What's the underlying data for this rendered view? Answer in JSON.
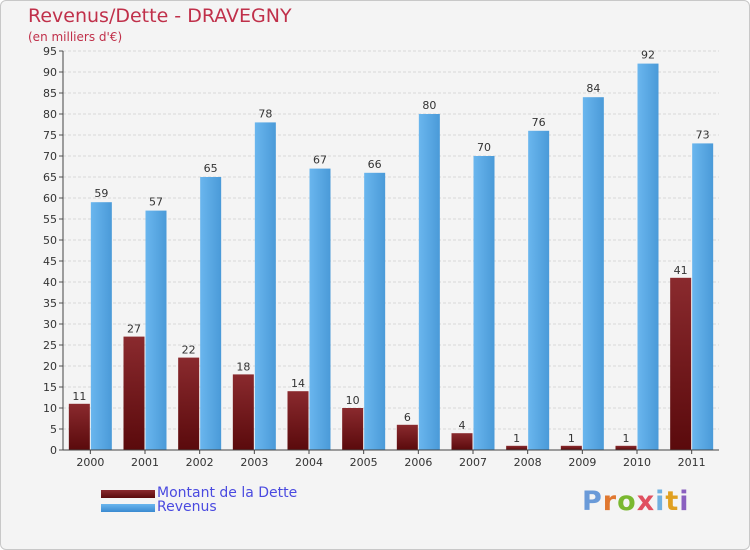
{
  "header": {
    "title": "Revenus/Dette - DRAVEGNY",
    "subtitle": "(en milliers d'€)"
  },
  "legend": {
    "debt_label": "Montant de la Dette",
    "revenue_label": "Revenus"
  },
  "logo": {
    "text": "Proxiti"
  },
  "colors": {
    "debt": "#7a1a1e",
    "revenue": "#5aaae6",
    "title": "#c0304a",
    "legend_text": "#4a4ae0"
  },
  "chart_data": {
    "type": "bar",
    "title": "Revenus/Dette - DRAVEGNY",
    "subtitle": "(en milliers d'€)",
    "categories": [
      "2000",
      "2001",
      "2002",
      "2003",
      "2004",
      "2005",
      "2006",
      "2007",
      "2008",
      "2009",
      "2010",
      "2011"
    ],
    "series": [
      {
        "name": "Montant de la Dette",
        "values": [
          11,
          27,
          22,
          18,
          14,
          10,
          6,
          4,
          1,
          1,
          1,
          41
        ]
      },
      {
        "name": "Revenus",
        "values": [
          59,
          57,
          65,
          78,
          67,
          66,
          80,
          70,
          76,
          84,
          92,
          73
        ]
      }
    ],
    "ylim": [
      0,
      95
    ],
    "yticks": [
      0,
      5,
      10,
      15,
      20,
      25,
      30,
      35,
      40,
      45,
      50,
      55,
      60,
      65,
      70,
      75,
      80,
      85,
      90,
      95
    ],
    "grid": true,
    "legend_position": "bottom-left"
  }
}
